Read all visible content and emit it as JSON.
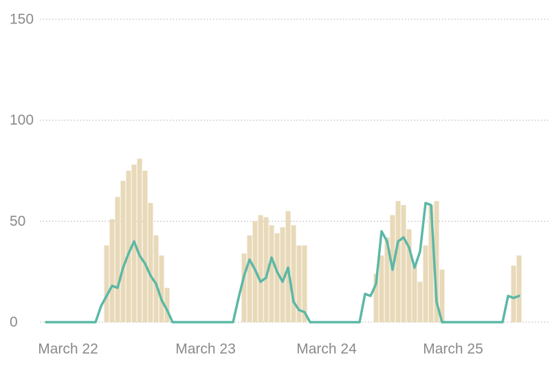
{
  "chart_data": {
    "type": "bar",
    "categories": [
      null,
      null,
      null,
      null,
      "March 22",
      null,
      null,
      null,
      null,
      null,
      null,
      null,
      null,
      null,
      null,
      null,
      null,
      null,
      null,
      null,
      null,
      null,
      null,
      null,
      null,
      null,
      null,
      null,
      null,
      "March 23",
      null,
      null,
      null,
      null,
      null,
      null,
      null,
      null,
      null,
      null,
      null,
      null,
      null,
      null,
      null,
      null,
      null,
      null,
      null,
      null,
      null,
      "March 24",
      null,
      null,
      null,
      null,
      null,
      null,
      null,
      null,
      null,
      null,
      null,
      null,
      null,
      null,
      null,
      null,
      null,
      null,
      null,
      null,
      null,
      null,
      "March 25",
      null,
      null,
      null,
      null,
      null,
      null,
      null,
      null,
      null,
      null,
      null,
      null
    ],
    "series": [
      {
        "type": "bar",
        "color": "#e8d9b9",
        "values": [
          null,
          null,
          null,
          null,
          null,
          null,
          null,
          null,
          null,
          null,
          null,
          38,
          51,
          62,
          70,
          75,
          78,
          81,
          75,
          59,
          43,
          33,
          17,
          null,
          null,
          null,
          null,
          null,
          null,
          null,
          null,
          null,
          null,
          null,
          null,
          null,
          34,
          43,
          50,
          53,
          52,
          48,
          44,
          47,
          55,
          48,
          38,
          38,
          null,
          null,
          null,
          null,
          null,
          null,
          null,
          null,
          null,
          null,
          null,
          null,
          24,
          33,
          42,
          53,
          60,
          58,
          46,
          28,
          20,
          38,
          58,
          60,
          26,
          null,
          null,
          null,
          null,
          null,
          null,
          null,
          null,
          null,
          null,
          null,
          null,
          28,
          33
        ]
      },
      {
        "type": "line",
        "color": "#5bb8a5",
        "values": [
          0,
          0,
          0,
          0,
          0,
          0,
          0,
          0,
          0,
          0,
          8,
          13,
          18,
          17,
          27,
          34,
          40,
          33,
          29,
          23,
          19,
          11,
          6,
          0,
          0,
          0,
          0,
          0,
          0,
          0,
          0,
          0,
          0,
          0,
          0,
          12,
          23,
          31,
          26,
          20,
          22,
          32,
          25,
          20,
          27,
          10,
          6,
          5,
          0,
          0,
          0,
          0,
          0,
          0,
          0,
          0,
          0,
          0,
          14,
          13,
          19,
          45,
          40,
          26,
          40,
          42,
          37,
          27,
          35,
          59,
          58,
          10,
          0,
          0,
          0,
          0,
          0,
          0,
          0,
          0,
          0,
          0,
          0,
          0,
          13,
          12,
          13
        ]
      }
    ],
    "ylim": [
      0,
      150
    ],
    "yticks": [
      0,
      50,
      100,
      150
    ],
    "grid": true
  }
}
